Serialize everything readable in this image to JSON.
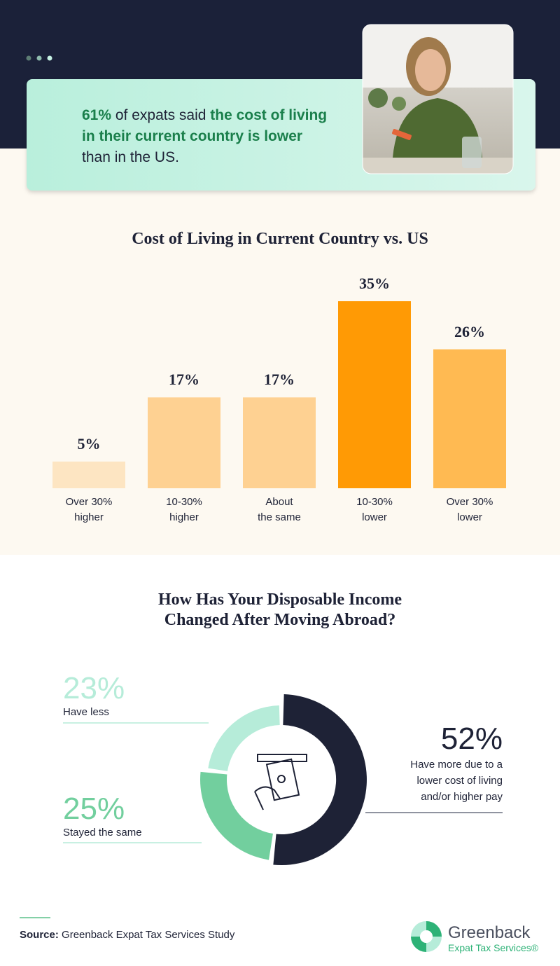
{
  "callout": {
    "segments": [
      "61%",
      " of expats said ",
      "the cost of living in their current country is lower",
      " than in the US."
    ]
  },
  "chart_data": [
    {
      "type": "bar",
      "title": "Cost of Living in Current Country vs. US",
      "categories": [
        "Over 30%\nhigher",
        "10-30%\nhigher",
        "About\nthe same",
        "10-30%\nlower",
        "Over 30%\nlower"
      ],
      "values": [
        5,
        17,
        17,
        35,
        26
      ],
      "value_labels": [
        "5%",
        "17%",
        "17%",
        "35%",
        "26%"
      ],
      "colors": [
        "#fde5c2",
        "#fed192",
        "#fed192",
        "#ff9a05",
        "#ffba52"
      ]
    },
    {
      "type": "donut",
      "title": "How Has Your Disposable Income\nChanged After Moving Abroad?",
      "categories": [
        "Have more due to a\nlower cost of living\nand/or higher pay",
        "Stayed the same",
        "Have less"
      ],
      "values": [
        52,
        25,
        23
      ],
      "value_labels": [
        "52%",
        "25%",
        "23%"
      ],
      "colors": [
        "#1e2236",
        "#72cf9e",
        "#b6ecd9"
      ]
    }
  ],
  "source": {
    "label": "Source:",
    "text": " Greenback Expat Tax Services Study"
  },
  "logo": {
    "name": "Greenback",
    "tagline": "Expat Tax Services®"
  }
}
